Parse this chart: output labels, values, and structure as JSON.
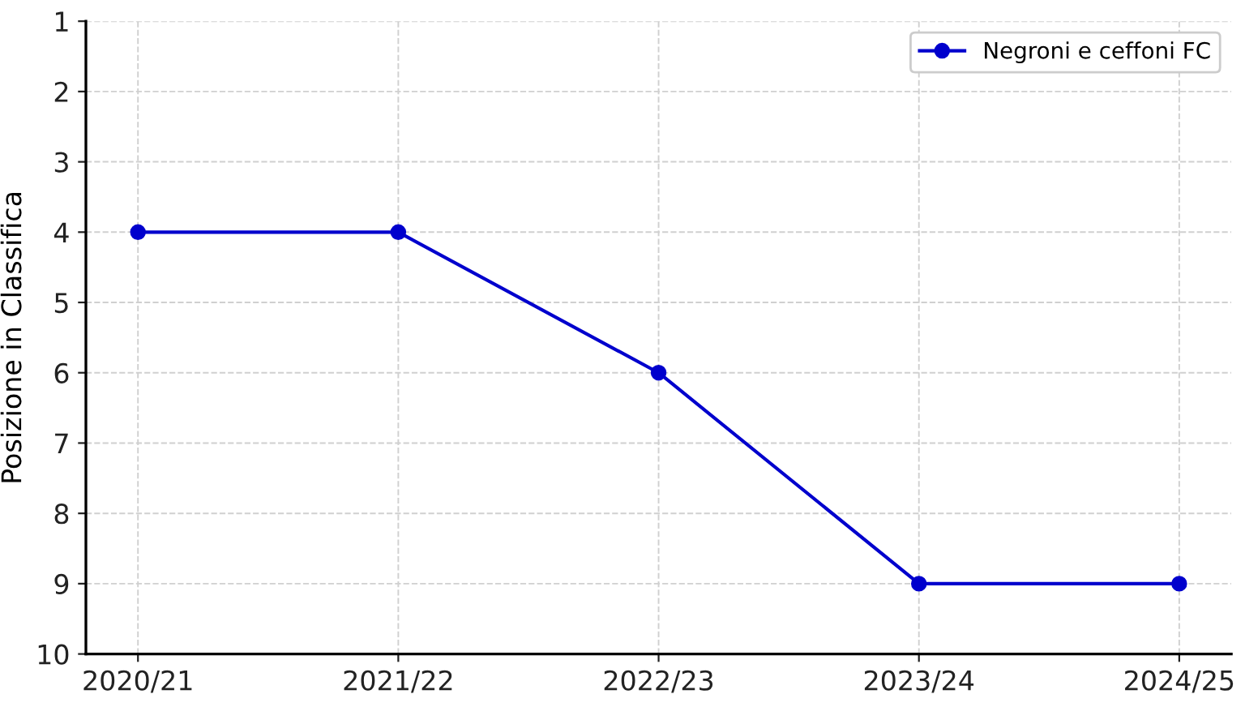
{
  "chart_data": {
    "type": "line",
    "ylabel": "Posizione in Classifica",
    "categories": [
      "2020/21",
      "2021/22",
      "2022/23",
      "2023/24",
      "2024/25"
    ],
    "series": [
      {
        "name": "Negroni e ceffoni FC",
        "color": "#0000cd",
        "values": [
          4,
          4,
          6,
          9,
          9
        ]
      }
    ],
    "ylim": [
      10,
      1
    ],
    "yticks": [
      1,
      2,
      3,
      4,
      5,
      6,
      7,
      8,
      9,
      10
    ],
    "grid": true,
    "legend": "top right",
    "marker": "circle",
    "line_style": "solid"
  }
}
